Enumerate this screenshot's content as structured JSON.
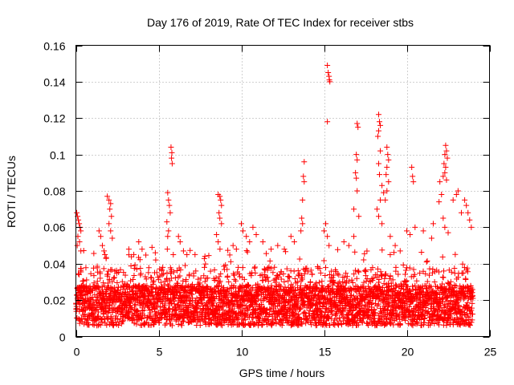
{
  "chart_data": {
    "type": "scatter",
    "title": "Day 176 of 2019, Rate Of TEC Index for receiver stbs",
    "xlabel": "GPS time / hours",
    "ylabel": "ROTI / TECUs",
    "xlim": [
      0,
      25
    ],
    "ylim": [
      0,
      0.16
    ],
    "x_ticks": [
      0,
      5,
      10,
      15,
      20,
      25
    ],
    "x_tick_labels": [
      "0",
      "5",
      "10",
      "15",
      "20",
      "25"
    ],
    "y_ticks": [
      0,
      0.02,
      0.04,
      0.06,
      0.08,
      0.1,
      0.12,
      0.14,
      0.16
    ],
    "y_tick_labels": [
      "0",
      "0.02",
      "0.04",
      "0.06",
      "0.08",
      "0.1",
      "0.12",
      "0.14",
      "0.16"
    ],
    "grid": true,
    "marker": "+",
    "series": [
      {
        "name": "ROTI",
        "color": "#ff0000",
        "dense_band": {
          "x_range": [
            0,
            24
          ],
          "y_range": [
            0.005,
            0.035
          ]
        },
        "points": [
          [
            0.05,
            0.068
          ],
          [
            0.1,
            0.066
          ],
          [
            0.15,
            0.064
          ],
          [
            0.2,
            0.062
          ],
          [
            0.25,
            0.06
          ],
          [
            0.3,
            0.058
          ],
          [
            0.12,
            0.055
          ],
          [
            0.22,
            0.052
          ],
          [
            0.08,
            0.05
          ],
          [
            0.3,
            0.047
          ],
          [
            1.4,
            0.058
          ],
          [
            1.5,
            0.055
          ],
          [
            1.6,
            0.05
          ],
          [
            1.7,
            0.047
          ],
          [
            1.9,
            0.077
          ],
          [
            2.0,
            0.075
          ],
          [
            2.1,
            0.073
          ],
          [
            2.05,
            0.07
          ],
          [
            2.15,
            0.066
          ],
          [
            2.0,
            0.062
          ],
          [
            2.1,
            0.058
          ],
          [
            2.2,
            0.054
          ],
          [
            3.2,
            0.048
          ],
          [
            3.5,
            0.045
          ],
          [
            3.8,
            0.052
          ],
          [
            4.0,
            0.048
          ],
          [
            4.6,
            0.049
          ],
          [
            4.8,
            0.046
          ],
          [
            5.55,
            0.079
          ],
          [
            5.6,
            0.075
          ],
          [
            5.65,
            0.072
          ],
          [
            5.7,
            0.068
          ],
          [
            5.5,
            0.063
          ],
          [
            5.6,
            0.058
          ],
          [
            5.55,
            0.055
          ],
          [
            5.75,
            0.104
          ],
          [
            5.8,
            0.101
          ],
          [
            5.78,
            0.098
          ],
          [
            5.82,
            0.095
          ],
          [
            6.2,
            0.055
          ],
          [
            6.3,
            0.052
          ],
          [
            6.5,
            0.047
          ],
          [
            7.2,
            0.045
          ],
          [
            7.8,
            0.044
          ],
          [
            8.6,
            0.078
          ],
          [
            8.7,
            0.077
          ],
          [
            8.75,
            0.075
          ],
          [
            8.8,
            0.072
          ],
          [
            8.65,
            0.068
          ],
          [
            8.7,
            0.065
          ],
          [
            8.8,
            0.062
          ],
          [
            8.5,
            0.056
          ],
          [
            8.6,
            0.052
          ],
          [
            9.5,
            0.05
          ],
          [
            9.7,
            0.048
          ],
          [
            10.0,
            0.062
          ],
          [
            10.1,
            0.058
          ],
          [
            10.3,
            0.055
          ],
          [
            10.5,
            0.052
          ],
          [
            10.7,
            0.06
          ],
          [
            10.9,
            0.056
          ],
          [
            11.3,
            0.052
          ],
          [
            11.8,
            0.048
          ],
          [
            12.2,
            0.05
          ],
          [
            12.6,
            0.048
          ],
          [
            13.0,
            0.055
          ],
          [
            13.2,
            0.052
          ],
          [
            13.8,
            0.096
          ],
          [
            13.75,
            0.088
          ],
          [
            13.8,
            0.085
          ],
          [
            13.7,
            0.075
          ],
          [
            13.65,
            0.065
          ],
          [
            13.7,
            0.062
          ],
          [
            13.6,
            0.058
          ],
          [
            15.2,
            0.149
          ],
          [
            15.25,
            0.145
          ],
          [
            15.3,
            0.143
          ],
          [
            15.32,
            0.141
          ],
          [
            15.35,
            0.14
          ],
          [
            15.2,
            0.118
          ],
          [
            15.1,
            0.062
          ],
          [
            15.0,
            0.058
          ],
          [
            15.2,
            0.055
          ],
          [
            15.3,
            0.05
          ],
          [
            16.2,
            0.052
          ],
          [
            16.5,
            0.05
          ],
          [
            16.8,
            0.055
          ],
          [
            17.0,
            0.117
          ],
          [
            17.05,
            0.115
          ],
          [
            16.95,
            0.1
          ],
          [
            17.0,
            0.097
          ],
          [
            16.9,
            0.09
          ],
          [
            16.95,
            0.087
          ],
          [
            17.0,
            0.08
          ],
          [
            16.8,
            0.07
          ],
          [
            17.1,
            0.066
          ],
          [
            18.3,
            0.122
          ],
          [
            18.35,
            0.118
          ],
          [
            18.4,
            0.116
          ],
          [
            18.3,
            0.113
          ],
          [
            18.25,
            0.11
          ],
          [
            18.4,
            0.102
          ],
          [
            18.3,
            0.095
          ],
          [
            18.35,
            0.089
          ],
          [
            18.5,
            0.083
          ],
          [
            18.6,
            0.079
          ],
          [
            18.4,
            0.075
          ],
          [
            18.2,
            0.07
          ],
          [
            18.3,
            0.066
          ],
          [
            18.5,
            0.062
          ],
          [
            18.8,
            0.104
          ],
          [
            18.85,
            0.1
          ],
          [
            18.9,
            0.097
          ],
          [
            18.8,
            0.093
          ],
          [
            18.75,
            0.089
          ],
          [
            18.9,
            0.085
          ],
          [
            18.8,
            0.08
          ],
          [
            18.7,
            0.075
          ],
          [
            19.0,
            0.055
          ],
          [
            19.3,
            0.05
          ],
          [
            19.6,
            0.047
          ],
          [
            20.0,
            0.058
          ],
          [
            20.2,
            0.056
          ],
          [
            20.3,
            0.093
          ],
          [
            20.35,
            0.088
          ],
          [
            20.4,
            0.085
          ],
          [
            20.5,
            0.06
          ],
          [
            21.0,
            0.058
          ],
          [
            21.5,
            0.054
          ],
          [
            21.6,
            0.062
          ],
          [
            22.0,
            0.085
          ],
          [
            22.1,
            0.078
          ],
          [
            21.95,
            0.074
          ],
          [
            22.2,
            0.088
          ],
          [
            22.25,
            0.095
          ],
          [
            22.3,
            0.1
          ],
          [
            22.35,
            0.105
          ],
          [
            22.4,
            0.102
          ],
          [
            22.45,
            0.098
          ],
          [
            22.35,
            0.093
          ],
          [
            22.3,
            0.09
          ],
          [
            22.4,
            0.086
          ],
          [
            22.2,
            0.065
          ],
          [
            22.3,
            0.06
          ],
          [
            22.5,
            0.057
          ],
          [
            22.8,
            0.075
          ],
          [
            23.0,
            0.078
          ],
          [
            23.1,
            0.08
          ],
          [
            23.3,
            0.068
          ],
          [
            23.5,
            0.075
          ],
          [
            23.6,
            0.072
          ],
          [
            23.7,
            0.068
          ],
          [
            23.8,
            0.064
          ],
          [
            23.9,
            0.06
          ]
        ]
      }
    ]
  }
}
